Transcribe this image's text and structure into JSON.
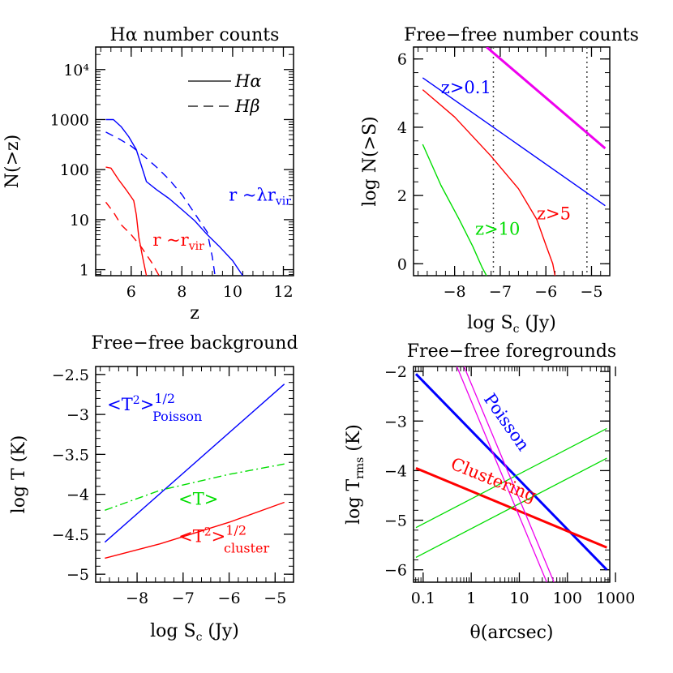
{
  "chart_data": [
    {
      "type": "line",
      "title": "Hα number counts",
      "xlabel": "z",
      "ylabel": "N(>z)",
      "xlim": [
        4.6,
        12.4
      ],
      "ylim": [
        -0.12,
        4.45
      ],
      "ylog": true,
      "xticks": [
        6,
        8,
        10,
        12
      ],
      "xtick_labels": [
        "6",
        "8",
        "10",
        "12"
      ],
      "yticks": [
        0,
        1,
        2,
        3,
        4
      ],
      "ytick_labels": [
        "1",
        "10",
        "100",
        "1000",
        "10⁴"
      ],
      "legend": {
        "placement": "top-right",
        "entries": [
          {
            "label": "Hα",
            "style": "solid"
          },
          {
            "label": "Hβ",
            "style": "dashed"
          }
        ]
      },
      "annotations": [
        {
          "text": "r ~λr",
          "sub": "vir",
          "color": "#0000ff",
          "x": 9.85,
          "y": 1.38
        },
        {
          "text": "r ~r",
          "sub": "vir",
          "color": "#ff0000",
          "x": 6.85,
          "y": 0.48
        }
      ],
      "series": [
        {
          "name": "Hα",
          "line": "Hα",
          "color": "#0000ff",
          "dash": "solid",
          "x": [
            5.0,
            5.3,
            5.6,
            5.9,
            6.2,
            6.6,
            7.0,
            7.5,
            8.0,
            8.5,
            9.0,
            9.5,
            10.0,
            10.4
          ],
          "y": [
            3.0,
            3.0,
            2.86,
            2.66,
            2.4,
            1.76,
            1.6,
            1.42,
            1.2,
            0.98,
            0.7,
            0.45,
            0.18,
            -0.12
          ]
        },
        {
          "name": "Hβ",
          "line": "Hβ",
          "color": "#0000ff",
          "dash": "dashed",
          "x": [
            5.0,
            5.5,
            6.0,
            6.5,
            7.0,
            7.5,
            8.0,
            8.4,
            8.8,
            9.0,
            9.1,
            9.2,
            9.3
          ],
          "y": [
            2.75,
            2.62,
            2.47,
            2.27,
            2.05,
            1.8,
            1.5,
            1.2,
            0.9,
            0.75,
            0.5,
            0.25,
            -0.1
          ]
        },
        {
          "name": "Hα",
          "line": "Hα",
          "color": "#ff0000",
          "dash": "solid",
          "x": [
            5.0,
            5.2,
            5.5,
            5.8,
            6.1,
            6.2,
            6.3,
            6.45,
            6.6
          ],
          "y": [
            2.05,
            2.03,
            1.8,
            1.6,
            1.38,
            1.1,
            0.65,
            0.25,
            -0.12
          ]
        },
        {
          "name": "Hβ",
          "line": "Hβ",
          "color": "#ff0000",
          "dash": "dashed",
          "x": [
            5.0,
            5.3,
            5.6,
            6.0,
            6.4,
            6.8,
            7.1
          ],
          "y": [
            1.35,
            1.15,
            0.9,
            0.7,
            0.45,
            0.15,
            -0.12
          ]
        }
      ]
    },
    {
      "type": "line",
      "title": "Free−free number counts",
      "xlabel": "log S",
      "xlabel_sub": "c",
      "xlabel_unit": " (Jy)",
      "ylabel": "log N(>S)",
      "xlim": [
        -8.9,
        -4.6
      ],
      "ylim": [
        -0.35,
        6.35
      ],
      "xticks": [
        -8,
        -7,
        -6,
        -5
      ],
      "xtick_labels": [
        "−8",
        "−7",
        "−6",
        "−5"
      ],
      "yticks": [
        0,
        2,
        4,
        6
      ],
      "ytick_labels": [
        "0",
        "2",
        "4",
        "6"
      ],
      "vlines": [
        -7.15,
        -5.1
      ],
      "annotations": [
        {
          "text": "z>0.1",
          "color": "#0000ff",
          "x": -8.3,
          "y": 5.0
        },
        {
          "text": "z>5",
          "color": "#ff0000",
          "x": -6.2,
          "y": 1.3
        },
        {
          "text": "z>10",
          "color": "#00dd00",
          "x": -7.55,
          "y": 0.85
        }
      ],
      "series": [
        {
          "color": "#ee00ee",
          "width": 3,
          "x": [
            -7.3,
            -4.7
          ],
          "y": [
            6.35,
            3.38
          ]
        },
        {
          "color": "#0000ff",
          "width": 1.4,
          "x": [
            -8.7,
            -4.7
          ],
          "y": [
            5.45,
            1.7
          ]
        },
        {
          "color": "#ff0000",
          "width": 1.4,
          "x": [
            -8.7,
            -8.0,
            -7.2,
            -6.6,
            -6.2,
            -6.0,
            -5.85,
            -5.8
          ],
          "y": [
            5.1,
            4.3,
            3.15,
            2.2,
            1.3,
            0.55,
            0.0,
            -0.35
          ]
        },
        {
          "color": "#00dd00",
          "width": 1.4,
          "x": [
            -8.7,
            -8.3,
            -7.9,
            -7.6,
            -7.4,
            -7.3
          ],
          "y": [
            3.5,
            2.3,
            1.3,
            0.5,
            -0.1,
            -0.35
          ]
        }
      ]
    },
    {
      "type": "line",
      "title": "Free−free background",
      "xlabel": "log S",
      "xlabel_sub": "c",
      "xlabel_unit": " (Jy)",
      "ylabel": "log T (K)",
      "xlim": [
        -8.9,
        -4.6
      ],
      "ylim": [
        -5.1,
        -2.4
      ],
      "xticks": [
        -8,
        -7,
        -6,
        -5
      ],
      "xtick_labels": [
        "−8",
        "−7",
        "−6",
        "−5"
      ],
      "yticks": [
        -5,
        -4.5,
        -4,
        -3.5,
        -3,
        -2.5
      ],
      "ytick_labels": [
        "−5",
        "−4.5",
        "−4",
        "−3.5",
        "−3",
        "−2.5"
      ],
      "annotations": [
        {
          "text": "<T",
          "sup2": "2",
          "close": ">",
          "sup": "1/2",
          "sub": "Poisson",
          "color": "#0000ff",
          "x": -8.65,
          "y": -2.95
        },
        {
          "text": "<T>",
          "color": "#00dd00",
          "x": -7.1,
          "y": -4.13
        },
        {
          "text": "<T",
          "sup2": "2",
          "close": ">",
          "sup": "1/2",
          "sub": "cluster",
          "color": "#ff0000",
          "x": -7.1,
          "y": -4.6
        }
      ],
      "series": [
        {
          "color": "#0000ff",
          "dash": "solid",
          "x": [
            -8.7,
            -4.8
          ],
          "y": [
            -4.6,
            -2.62
          ]
        },
        {
          "color": "#00dd00",
          "dash": "dashdot",
          "x": [
            -8.7,
            -7.5,
            -6.0,
            -4.8
          ],
          "y": [
            -4.2,
            -3.95,
            -3.75,
            -3.62
          ]
        },
        {
          "color": "#ff0000",
          "dash": "solid",
          "x": [
            -8.7,
            -7.5,
            -6.0,
            -4.8
          ],
          "y": [
            -4.8,
            -4.62,
            -4.35,
            -4.1
          ]
        }
      ]
    },
    {
      "type": "line",
      "title": "Free−free foregrounds",
      "xlabel": "θ(arcsec)",
      "ylabel": "log T",
      "ylabel_sub": "rms",
      "ylabel_unit": " (K)",
      "xlog": true,
      "xlim": [
        -1.2,
        2.88
      ],
      "ylim": [
        -6.25,
        -1.9
      ],
      "xticks": [
        -1,
        0,
        1,
        2,
        3
      ],
      "xtick_labels": [
        "0.1",
        "1",
        "10",
        "100",
        "1000"
      ],
      "yticks": [
        -6,
        -5,
        -4,
        -3,
        -2
      ],
      "ytick_labels": [
        "−6",
        "−5",
        "−4",
        "−3",
        "−2"
      ],
      "annotations": [
        {
          "text": "Poisson",
          "color": "#0000ff",
          "x": 0.25,
          "y": -2.55,
          "rotate": 55
        },
        {
          "text": "Clustering",
          "color": "#ff0000",
          "x": -0.45,
          "y": -3.95,
          "rotate": 22
        }
      ],
      "series": [
        {
          "color": "#0000ff",
          "width": 3,
          "x": [
            -1.15,
            2.82
          ],
          "y": [
            -2.05,
            -6.0
          ]
        },
        {
          "color": "#ff0000",
          "width": 3,
          "x": [
            -1.15,
            2.82
          ],
          "y": [
            -3.95,
            -5.55
          ]
        },
        {
          "color": "#00dd00",
          "width": 1.3,
          "x": [
            -1.15,
            2.82
          ],
          "y": [
            -5.15,
            -3.15
          ]
        },
        {
          "color": "#00dd00",
          "width": 1.3,
          "x": [
            -1.15,
            2.82
          ],
          "y": [
            -5.75,
            -3.75
          ]
        },
        {
          "color": "#ee00ee",
          "width": 1.3,
          "x": [
            -0.3,
            1.57
          ],
          "y": [
            -1.9,
            -6.25
          ]
        },
        {
          "color": "#ee00ee",
          "width": 1.3,
          "x": [
            -0.15,
            1.72
          ],
          "y": [
            -1.9,
            -6.25
          ]
        }
      ]
    }
  ]
}
